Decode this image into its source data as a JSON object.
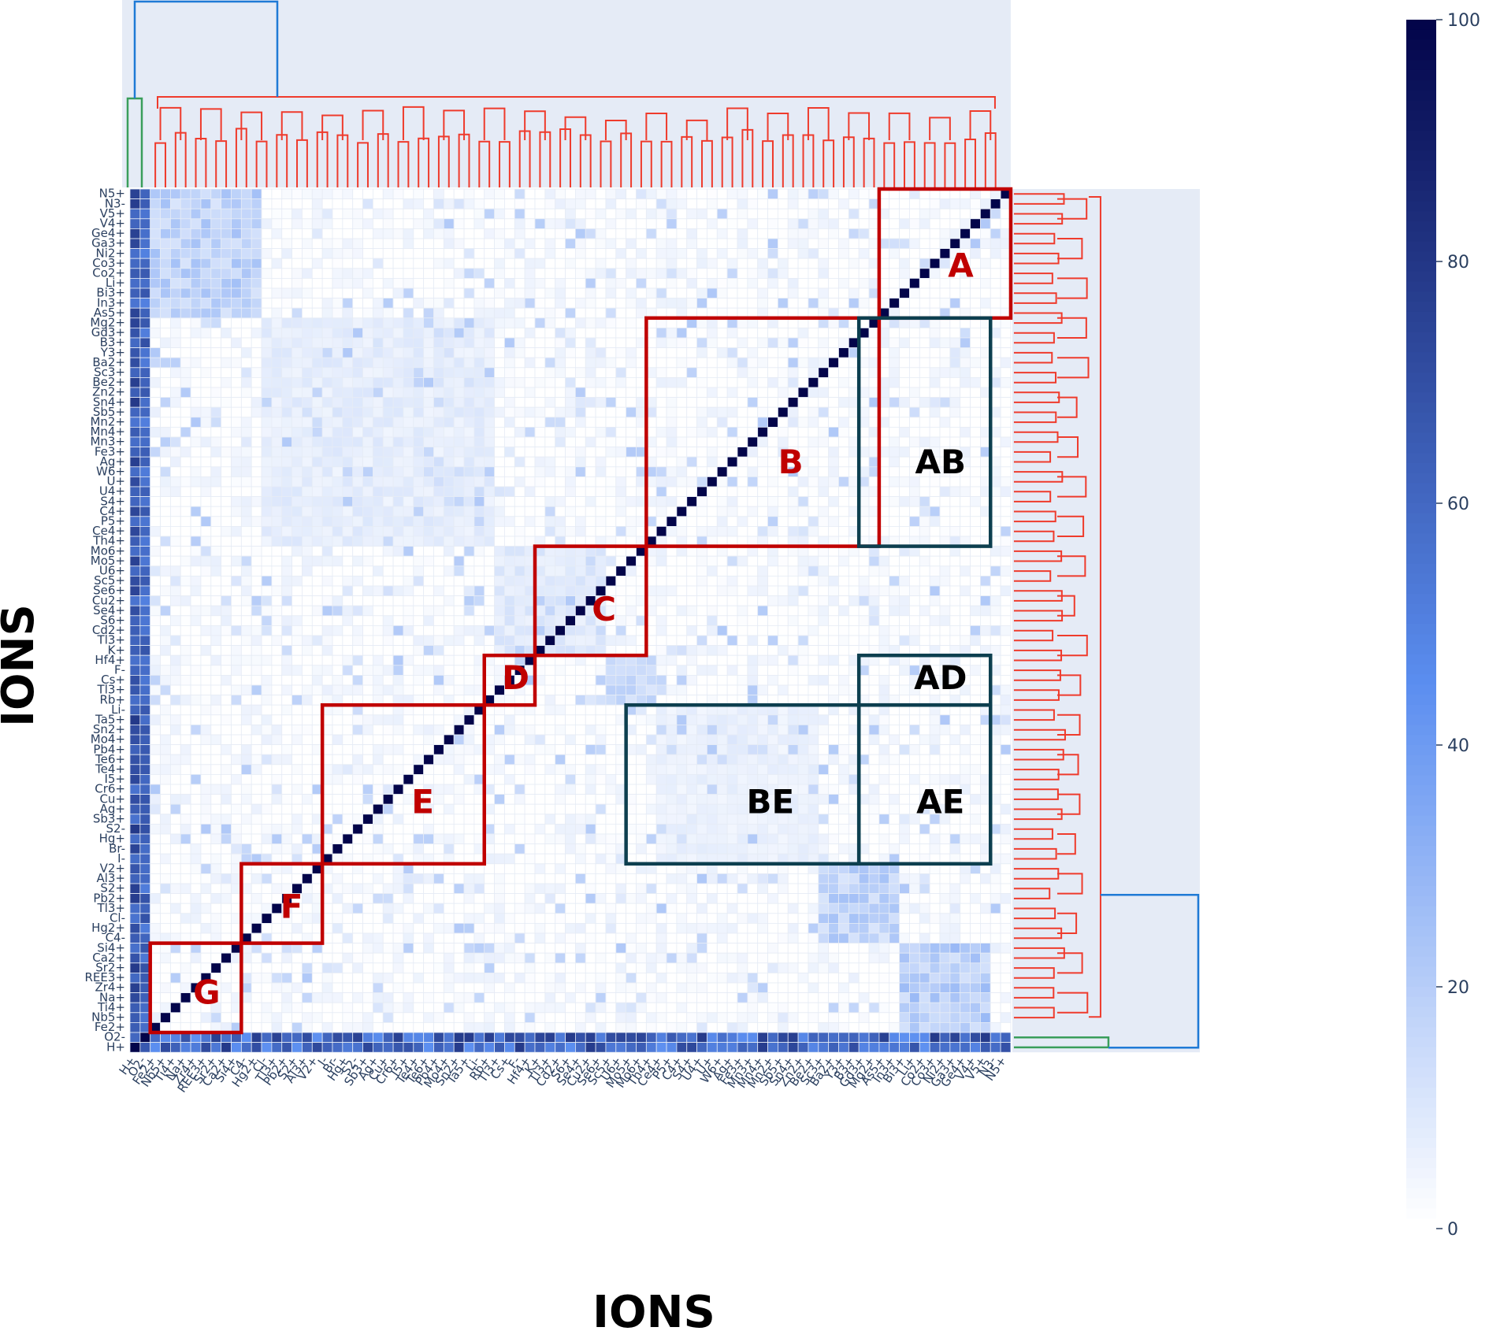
{
  "chart_data": {
    "type": "heatmap",
    "title": "",
    "xlabel": "IONS",
    "ylabel": "IONS",
    "row_labels": [
      "N5+",
      "N3-",
      "V5+",
      "V4+",
      "Ge4+",
      "Ga3+",
      "Ni2+",
      "Co3+",
      "Co2+",
      "Li+",
      "Bi3+",
      "In3+",
      "As5+",
      "Mg2+",
      "Gd3+",
      "B3+",
      "Y3+",
      "Ba2+",
      "Sc3+",
      "Be2+",
      "Zn2+",
      "Sn4+",
      "Sb5+",
      "Mn2+",
      "Mn4+",
      "Mn3+",
      "Fe3+",
      "Ag+",
      "W6+",
      "U+",
      "U4+",
      "S4+",
      "C4+",
      "P5+",
      "Ce4+",
      "Th4+",
      "Mo6+",
      "Mo5+",
      "U6+",
      "Sc5+",
      "Se6+",
      "Cu2+",
      "Se4+",
      "S6+",
      "Cd2+",
      "Tl3+",
      "K+",
      "Hf4+",
      "F-",
      "Cs+",
      "Tl3+",
      "Rb+",
      "Li-",
      "Ta5+",
      "Sn2+",
      "Mo4+",
      "Pb4+",
      "Te6+",
      "Te4+",
      "I5+",
      "Cr6+",
      "Cu+",
      "Ag+",
      "Sb3+",
      "S2-",
      "Hg+",
      "Br-",
      "I-",
      "V2+",
      "Al3+",
      "S2+",
      "Pb2+",
      "Tl3+",
      "Cl-",
      "Hg2+",
      "C4-",
      "Si4+",
      "Ca2+",
      "Sr2+",
      "REE3+",
      "Zr4+",
      "Na+",
      "Ti4+",
      "Nb5+",
      "Fe2+",
      "O2-",
      "H+"
    ],
    "color_scale": {
      "min": 0,
      "max": 100,
      "ticks": [
        0,
        20,
        40,
        60,
        80,
        100
      ],
      "low_color": "#ffffff",
      "mid_color": "#5b8ef0",
      "high_color": "#03054a"
    },
    "diagonal_value": 100,
    "cluster_blocks": [
      {
        "label": "A",
        "rows": [
          0,
          12
        ],
        "value": 25
      },
      {
        "label": "B",
        "rows": [
          13,
          35
        ],
        "value": 10
      },
      {
        "label": "C",
        "rows": [
          36,
          46
        ],
        "value": 12
      },
      {
        "label": "D",
        "rows": [
          47,
          51
        ],
        "value": 20
      },
      {
        "label": "E",
        "rows": [
          52,
          67
        ],
        "value": 8
      },
      {
        "label": "F",
        "rows": [
          68,
          75
        ],
        "value": 25
      },
      {
        "label": "G",
        "rows": [
          76,
          84
        ],
        "value": 28
      }
    ],
    "off_diagonal_blocks": [
      {
        "label": "AB",
        "rows": [
          13,
          35
        ],
        "cols": [
          72,
          84
        ]
      },
      {
        "label": "AD",
        "rows": [
          47,
          51
        ],
        "cols": [
          72,
          84
        ]
      },
      {
        "label": "BE",
        "rows": [
          52,
          67
        ],
        "cols": [
          49,
          71
        ]
      },
      {
        "label": "AE",
        "rows": [
          52,
          67
        ],
        "cols": [
          72,
          84
        ]
      }
    ],
    "strong_rows": [
      {
        "row": "H+",
        "value": 72
      },
      {
        "row": "O2-",
        "value": 72
      }
    ],
    "box_colors": {
      "cluster": "#c00000",
      "cross": "#0d3f4f"
    },
    "dendrogram_colors": {
      "main": "#ef3b2c",
      "root": "#1f7ad6",
      "outlier": "#3a9e5b"
    },
    "grid": true,
    "legend_position": "right colorbar"
  }
}
